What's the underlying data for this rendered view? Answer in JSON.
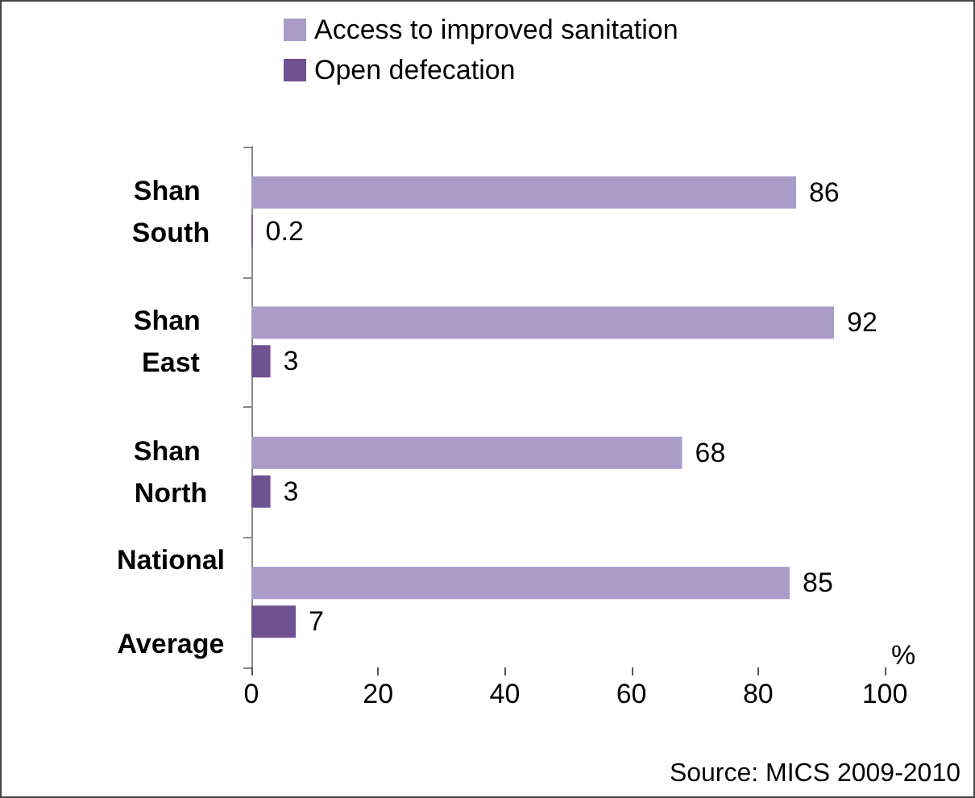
{
  "chart_data": {
    "type": "bar",
    "orientation": "horizontal",
    "categories": [
      "Shan South",
      "Shan East",
      "Shan North",
      "National Average"
    ],
    "series": [
      {
        "name": "Access to improved sanitation",
        "color": "#a99cc9",
        "values": [
          86,
          92,
          68,
          85
        ]
      },
      {
        "name": "Open defecation",
        "color": "#6f5192",
        "values": [
          0.2,
          3,
          3,
          7
        ]
      }
    ],
    "xlim": [
      0,
      100
    ],
    "xticks": [
      0,
      20,
      40,
      60,
      80,
      100
    ],
    "xlabel": "%",
    "data_labels": true,
    "grid": false,
    "legend": "top",
    "annotations": [
      "Source: MICS 2009-2010"
    ]
  }
}
